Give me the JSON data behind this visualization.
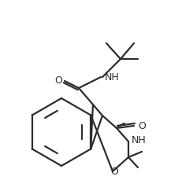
{
  "bg_color": "#ffffff",
  "line_color": "#2d2d2d",
  "bond_lw": 1.6,
  "figsize": [
    2.31,
    2.43
  ],
  "dpi": 100,
  "xlim": [
    0,
    231
  ],
  "ylim": [
    0,
    243
  ]
}
